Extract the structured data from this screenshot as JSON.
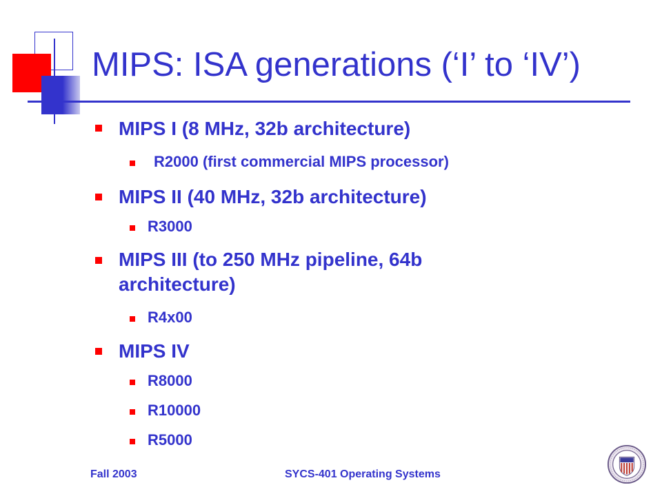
{
  "slide": {
    "title": "MIPS: ISA generations (‘I’ to ‘IV’)",
    "bullets": [
      {
        "level": 1,
        "text": "MIPS I (8 MHz, 32b architecture)"
      },
      {
        "level": 2,
        "text": "R2000 (first commercial MIPS processor)"
      },
      {
        "level": 1,
        "text": "MIPS II (40 MHz, 32b architecture)"
      },
      {
        "level": 2,
        "text": "R3000"
      },
      {
        "level": 1,
        "text": "MIPS III (to 250 MHz pipeline, 64b"
      },
      {
        "level": 1,
        "text": "architecture)"
      },
      {
        "level": 2,
        "text": "R4x00"
      },
      {
        "level": 1,
        "text": "MIPS IV"
      },
      {
        "level": 2,
        "text": "R8000"
      },
      {
        "level": 2,
        "text": "R10000"
      },
      {
        "level": 2,
        "text": "R5000"
      }
    ]
  },
  "footer": {
    "left": "Fall 2003",
    "center": "SYCS-401 Operating Systems"
  },
  "colors": {
    "text": "#3333cc",
    "bullet": "#ff0000",
    "accent_red": "#ff0000",
    "accent_blue": "#3333cc"
  },
  "icons": {
    "seal": "university-seal-icon"
  }
}
